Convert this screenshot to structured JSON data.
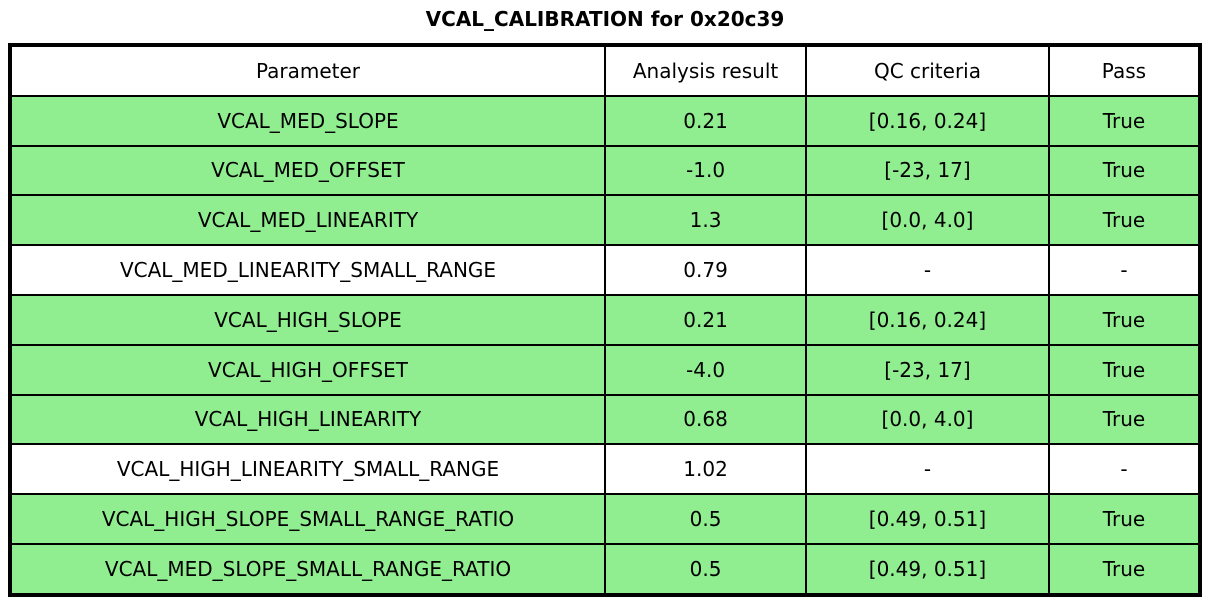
{
  "title": "VCAL_CALIBRATION for 0x20c39",
  "chart_data": {
    "type": "table",
    "title": "VCAL_CALIBRATION for 0x20c39",
    "columns": [
      "Parameter",
      "Analysis result",
      "QC criteria",
      "Pass"
    ],
    "rows": [
      {
        "cells": [
          "VCAL_MED_SLOPE",
          "0.21",
          "[0.16, 0.24]",
          "True"
        ],
        "highlight": true
      },
      {
        "cells": [
          "VCAL_MED_OFFSET",
          "-1.0",
          "[-23, 17]",
          "True"
        ],
        "highlight": true
      },
      {
        "cells": [
          "VCAL_MED_LINEARITY",
          "1.3",
          "[0.0, 4.0]",
          "True"
        ],
        "highlight": true
      },
      {
        "cells": [
          "VCAL_MED_LINEARITY_SMALL_RANGE",
          "0.79",
          "-",
          "-"
        ],
        "highlight": false
      },
      {
        "cells": [
          "VCAL_HIGH_SLOPE",
          "0.21",
          "[0.16, 0.24]",
          "True"
        ],
        "highlight": true
      },
      {
        "cells": [
          "VCAL_HIGH_OFFSET",
          "-4.0",
          "[-23, 17]",
          "True"
        ],
        "highlight": true
      },
      {
        "cells": [
          "VCAL_HIGH_LINEARITY",
          "0.68",
          "[0.0, 4.0]",
          "True"
        ],
        "highlight": true
      },
      {
        "cells": [
          "VCAL_HIGH_LINEARITY_SMALL_RANGE",
          "1.02",
          "-",
          "-"
        ],
        "highlight": false
      },
      {
        "cells": [
          "VCAL_HIGH_SLOPE_SMALL_RANGE_RATIO",
          "0.5",
          "[0.49, 0.51]",
          "True"
        ],
        "highlight": true
      },
      {
        "cells": [
          "VCAL_MED_SLOPE_SMALL_RANGE_RATIO",
          "0.5",
          "[0.49, 0.51]",
          "True"
        ],
        "highlight": true
      }
    ],
    "colors": {
      "pass_row_background": "#90EE90",
      "neutral_row_background": "#FFFFFF",
      "border": "#000000",
      "text": "#000000"
    },
    "layout": {
      "legend": "none",
      "grid": "full-borders",
      "column_widths_pct": [
        50.0,
        16.9,
        20.4,
        12.7
      ]
    }
  }
}
